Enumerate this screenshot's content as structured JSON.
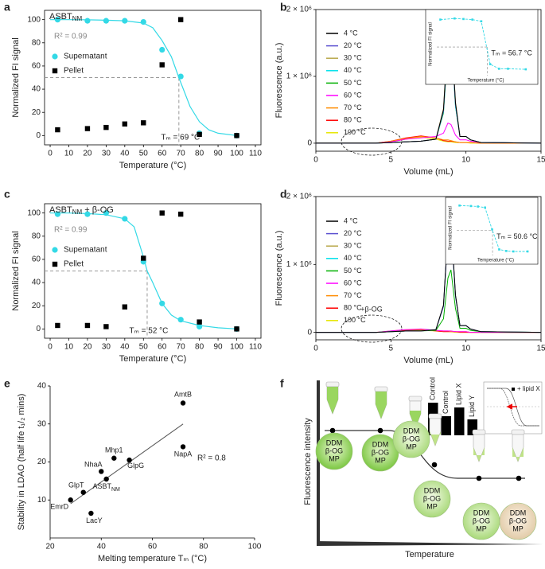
{
  "chart_data": [
    {
      "panel": "a",
      "type": "scatter_fit",
      "title": "ASBT",
      "title_sub": "NM",
      "r2_label": "R² = 0.99",
      "tm_label": "Tₘ = 69 °C",
      "tm": 69,
      "half": 50,
      "xlabel": "Temperature (°C)",
      "ylabel": "Normalized FI signal",
      "xlim": [
        -3,
        113
      ],
      "ylim": [
        -8,
        108
      ],
      "xticks": [
        0,
        10,
        20,
        30,
        40,
        50,
        60,
        70,
        80,
        90,
        100,
        110
      ],
      "yticks": [
        0,
        20,
        40,
        60,
        80,
        100
      ],
      "series": [
        {
          "name": "Supernatant",
          "color": "#33d9e6",
          "marker": "circle",
          "x": [
            4,
            20,
            30,
            40,
            50,
            60,
            70,
            80,
            100
          ],
          "values": [
            100,
            99,
            99,
            99,
            98,
            74,
            51,
            2,
            0
          ]
        },
        {
          "name": "Pellet",
          "color": "#000000",
          "marker": "square",
          "x": [
            4,
            20,
            30,
            40,
            50,
            60,
            70,
            80,
            100
          ],
          "values": [
            5,
            6,
            7,
            10,
            11,
            61,
            100,
            1,
            0
          ]
        }
      ],
      "fit": {
        "color": "#33d9e6",
        "x": [
          0,
          10,
          20,
          30,
          40,
          50,
          55,
          60,
          65,
          69,
          75,
          80,
          85,
          90,
          100
        ],
        "values": [
          100,
          100,
          99.8,
          99.5,
          99,
          97,
          93,
          82,
          68,
          50,
          25,
          12,
          5,
          2,
          0
        ]
      }
    },
    {
      "panel": "b",
      "type": "line",
      "xlabel": "Volume (mL)",
      "ylabel": "Fluorescence (a.u.)",
      "xlim": [
        0,
        15
      ],
      "ylim": [
        -120000,
        2000000
      ],
      "xticks": [
        0,
        5,
        10,
        15
      ],
      "yticks": [
        0,
        {
          "value": 1000000,
          "label": "1 × 10⁶"
        },
        {
          "value": 2000000,
          "label": "2 × 10⁶"
        }
      ],
      "x": [
        0,
        4,
        5,
        6,
        7,
        8,
        8.5,
        8.8,
        9,
        9.3,
        9.6,
        10,
        10.3,
        11,
        15
      ],
      "series": [
        {
          "name": "4 °C",
          "color": "#000000",
          "values": [
            0,
            0,
            10000,
            20000,
            30000,
            60000,
            500000,
            1600000,
            1780000,
            600000,
            100000,
            100000,
            50000,
            10000,
            0
          ]
        },
        {
          "name": "20 °C",
          "color": "#5a4fd0",
          "values": [
            0,
            0,
            10000,
            20000,
            30000,
            60000,
            480000,
            1550000,
            1740000,
            580000,
            100000,
            100000,
            50000,
            10000,
            0
          ]
        },
        {
          "name": "30 °C",
          "color": "#b8a84a",
          "values": [
            0,
            0,
            10000,
            20000,
            30000,
            60000,
            520000,
            1650000,
            1800000,
            620000,
            100000,
            100000,
            50000,
            10000,
            0
          ]
        },
        {
          "name": "40 °C",
          "color": "#00e0ea",
          "values": [
            0,
            0,
            10000,
            20000,
            30000,
            60000,
            470000,
            1500000,
            1720000,
            550000,
            100000,
            100000,
            50000,
            10000,
            0
          ]
        },
        {
          "name": "50 °C",
          "color": "#00b000",
          "values": [
            0,
            0,
            10000,
            20000,
            30000,
            60000,
            450000,
            1450000,
            1700000,
            550000,
            100000,
            100000,
            50000,
            10000,
            0
          ]
        },
        {
          "name": "60 °C",
          "color": "#ff00ff",
          "values": [
            0,
            0,
            20000,
            60000,
            80000,
            100000,
            150000,
            300000,
            280000,
            120000,
            50000,
            50000,
            30000,
            10000,
            0
          ]
        },
        {
          "name": "70 °C",
          "color": "#ff8c00",
          "values": [
            0,
            0,
            30000,
            70000,
            100000,
            80000,
            50000,
            50000,
            40000,
            20000,
            10000,
            10000,
            10000,
            0,
            0
          ]
        },
        {
          "name": "80 °C",
          "color": "#ff0000",
          "values": [
            0,
            0,
            30000,
            80000,
            110000,
            80000,
            40000,
            30000,
            30000,
            20000,
            10000,
            10000,
            10000,
            0,
            0
          ]
        },
        {
          "name": "100 °C",
          "color": "#e6e600",
          "values": [
            0,
            0,
            20000,
            60000,
            90000,
            60000,
            30000,
            20000,
            20000,
            10000,
            10000,
            10000,
            0,
            0,
            0
          ]
        }
      ],
      "inset": {
        "ylabel": "Normalized FI signal",
        "xlabel": "Temperature (°C)",
        "tm_label": "Tₘ = 56.7 °C",
        "tm": 56.7,
        "half": 50,
        "color": "#33d9e6",
        "xlim": [
          0,
          110
        ],
        "ylim": [
          0,
          110
        ],
        "x": [
          4,
          20,
          30,
          40,
          50,
          60,
          70,
          80,
          100
        ],
        "values": [
          98,
          100,
          99,
          98,
          95,
          20,
          12,
          12,
          11
        ]
      }
    },
    {
      "panel": "c",
      "type": "scatter_fit",
      "title": "ASBT",
      "title_sub": "NM",
      "title_suffix": " + β-OG",
      "r2_label": "R² = 0.99",
      "tm_label": "Tₘ = 52 °C",
      "tm": 52,
      "half": 50,
      "xlabel": "Temperature (°C)",
      "ylabel": "Normalized FI signal",
      "xlim": [
        -3,
        113
      ],
      "ylim": [
        -8,
        108
      ],
      "xticks": [
        0,
        10,
        20,
        30,
        40,
        50,
        60,
        70,
        80,
        90,
        100,
        110
      ],
      "yticks": [
        0,
        20,
        40,
        60,
        80,
        100
      ],
      "series": [
        {
          "name": "Supernatant",
          "color": "#33d9e6",
          "marker": "circle",
          "x": [
            4,
            20,
            30,
            40,
            50,
            60,
            70,
            80,
            100
          ],
          "values": [
            99,
            99,
            100,
            95,
            58,
            22,
            8,
            2,
            0
          ]
        },
        {
          "name": "Pellet",
          "color": "#000000",
          "marker": "square",
          "x": [
            4,
            20,
            30,
            40,
            50,
            60,
            70,
            80,
            100
          ],
          "values": [
            3,
            3,
            2,
            19,
            61,
            100,
            99,
            6,
            0
          ]
        }
      ],
      "fit": {
        "color": "#33d9e6",
        "x": [
          0,
          10,
          20,
          30,
          40,
          45,
          50,
          52,
          55,
          60,
          65,
          70,
          80,
          90,
          100
        ],
        "values": [
          100,
          100,
          99.5,
          98.5,
          95,
          88,
          62,
          50,
          40,
          22,
          12,
          7,
          3,
          1,
          0
        ]
      }
    },
    {
      "panel": "d",
      "type": "line",
      "annotation": "+β-OG",
      "xlabel": "Volume (mL)",
      "ylabel": "Fluorescence (a.u.)",
      "xlim": [
        0,
        15
      ],
      "ylim": [
        -110000,
        2000000
      ],
      "xticks": [
        0,
        5,
        10,
        15
      ],
      "yticks": [
        0,
        {
          "value": 1000000,
          "label": "1 × 10⁶"
        },
        {
          "value": 2000000,
          "label": "2 × 10⁶"
        }
      ],
      "x": [
        0,
        4,
        5,
        6,
        7,
        8,
        8.5,
        8.8,
        9,
        9.3,
        9.6,
        10,
        10.3,
        11,
        15
      ],
      "series": [
        {
          "name": "4 °C",
          "color": "#000000",
          "values": [
            0,
            0,
            10000,
            20000,
            20000,
            40000,
            400000,
            1500000,
            1650000,
            550000,
            100000,
            100000,
            50000,
            10000,
            0
          ]
        },
        {
          "name": "20 °C",
          "color": "#5a4fd0",
          "values": [
            0,
            0,
            10000,
            20000,
            20000,
            40000,
            380000,
            1450000,
            1600000,
            530000,
            100000,
            100000,
            50000,
            10000,
            0
          ]
        },
        {
          "name": "30 °C",
          "color": "#b8a84a",
          "values": [
            0,
            0,
            10000,
            20000,
            20000,
            40000,
            390000,
            1480000,
            1620000,
            540000,
            100000,
            100000,
            50000,
            10000,
            0
          ]
        },
        {
          "name": "40 °C",
          "color": "#00e0ea",
          "values": [
            0,
            0,
            10000,
            20000,
            20000,
            40000,
            380000,
            1460000,
            1600000,
            530000,
            100000,
            100000,
            50000,
            10000,
            0
          ]
        },
        {
          "name": "50 °C",
          "color": "#00b000",
          "values": [
            0,
            0,
            10000,
            20000,
            20000,
            30000,
            200000,
            800000,
            920000,
            350000,
            60000,
            60000,
            30000,
            10000,
            0
          ]
        },
        {
          "name": "60 °C",
          "color": "#ff00ff",
          "values": [
            0,
            0,
            20000,
            40000,
            50000,
            30000,
            20000,
            20000,
            20000,
            10000,
            10000,
            10000,
            0,
            0,
            0
          ]
        },
        {
          "name": "70 °C",
          "color": "#ff8c00",
          "values": [
            0,
            0,
            20000,
            40000,
            40000,
            30000,
            20000,
            20000,
            10000,
            10000,
            10000,
            10000,
            0,
            0,
            0
          ]
        },
        {
          "name": "80 °C",
          "color": "#ff0000",
          "values": [
            0,
            0,
            10000,
            30000,
            40000,
            20000,
            10000,
            10000,
            10000,
            10000,
            0,
            0,
            0,
            0,
            0
          ]
        },
        {
          "name": "100 °C",
          "color": "#e6e600",
          "values": [
            0,
            0,
            10000,
            30000,
            30000,
            20000,
            10000,
            10000,
            10000,
            0,
            0,
            0,
            0,
            0,
            0
          ]
        }
      ],
      "inset": {
        "ylabel": "Normalized FI signal",
        "xlabel": "Temperature (°C)",
        "tm_label": "Tₘ = 50.6 °C",
        "tm": 50.6,
        "half": 50,
        "color": "#33d9e6",
        "xlim": [
          0,
          110
        ],
        "ylim": [
          0,
          110
        ],
        "x": [
          4,
          20,
          30,
          40,
          50,
          60,
          70,
          80,
          100
        ],
        "values": [
          100,
          99,
          98,
          96,
          52,
          12,
          9,
          8,
          8
        ]
      }
    },
    {
      "panel": "e",
      "type": "scatter",
      "xlabel": "Melting temperature Tₘ (°C)",
      "ylabel": "Stability in LDAO (half life t₁/₂ mins)",
      "r2_label": "R² = 0.8",
      "xlim": [
        20,
        100
      ],
      "ylim": [
        0,
        40
      ],
      "xticks": [
        20,
        40,
        60,
        80,
        100
      ],
      "yticks": [
        10,
        20,
        30,
        40
      ],
      "color": "#000000",
      "x": [
        28,
        33,
        36,
        40,
        42,
        45,
        51,
        72,
        72
      ],
      "values": [
        10,
        12,
        6.5,
        17.5,
        15.5,
        21,
        20.5,
        35.5,
        24
      ],
      "labels": [
        "EmrD",
        "GlpT",
        "LacY",
        "NhaA",
        "ASBT",
        "Mhp1",
        "GlpG",
        "AmtB",
        "NapA"
      ],
      "label_subs": [
        null,
        null,
        null,
        null,
        "NM",
        null,
        null,
        null,
        null
      ],
      "fit": {
        "x": [
          28,
          72
        ],
        "values": [
          9,
          30
        ]
      }
    },
    {
      "type": "bar",
      "categories": [
        "Control",
        "Control",
        "Lipid X",
        "Lipid Y"
      ],
      "values": [
        0.82,
        0.48,
        0.7,
        0.4
      ],
      "color": "#000000",
      "ylim": [
        0,
        1
      ]
    }
  ],
  "diagram": {
    "panel": "f",
    "ylabel": "Fluorescence intensity",
    "xlabel": "Temperature",
    "inset_legend": "+ lipid X",
    "micelles": [
      {
        "lines": [
          "DDM",
          "β-OG",
          "MP"
        ]
      },
      {
        "lines": [
          "DDM",
          "β-OG",
          "MP"
        ]
      },
      {
        "lines": [
          "DDM",
          "β-OG",
          "MP"
        ]
      },
      {
        "lines": [
          "DDM",
          "β-OG",
          "MP"
        ]
      },
      {
        "lines": [
          "DDM",
          "β-OG",
          "MP"
        ]
      },
      {
        "lines": [
          "DDM",
          "β-OG",
          "MP"
        ]
      }
    ]
  }
}
